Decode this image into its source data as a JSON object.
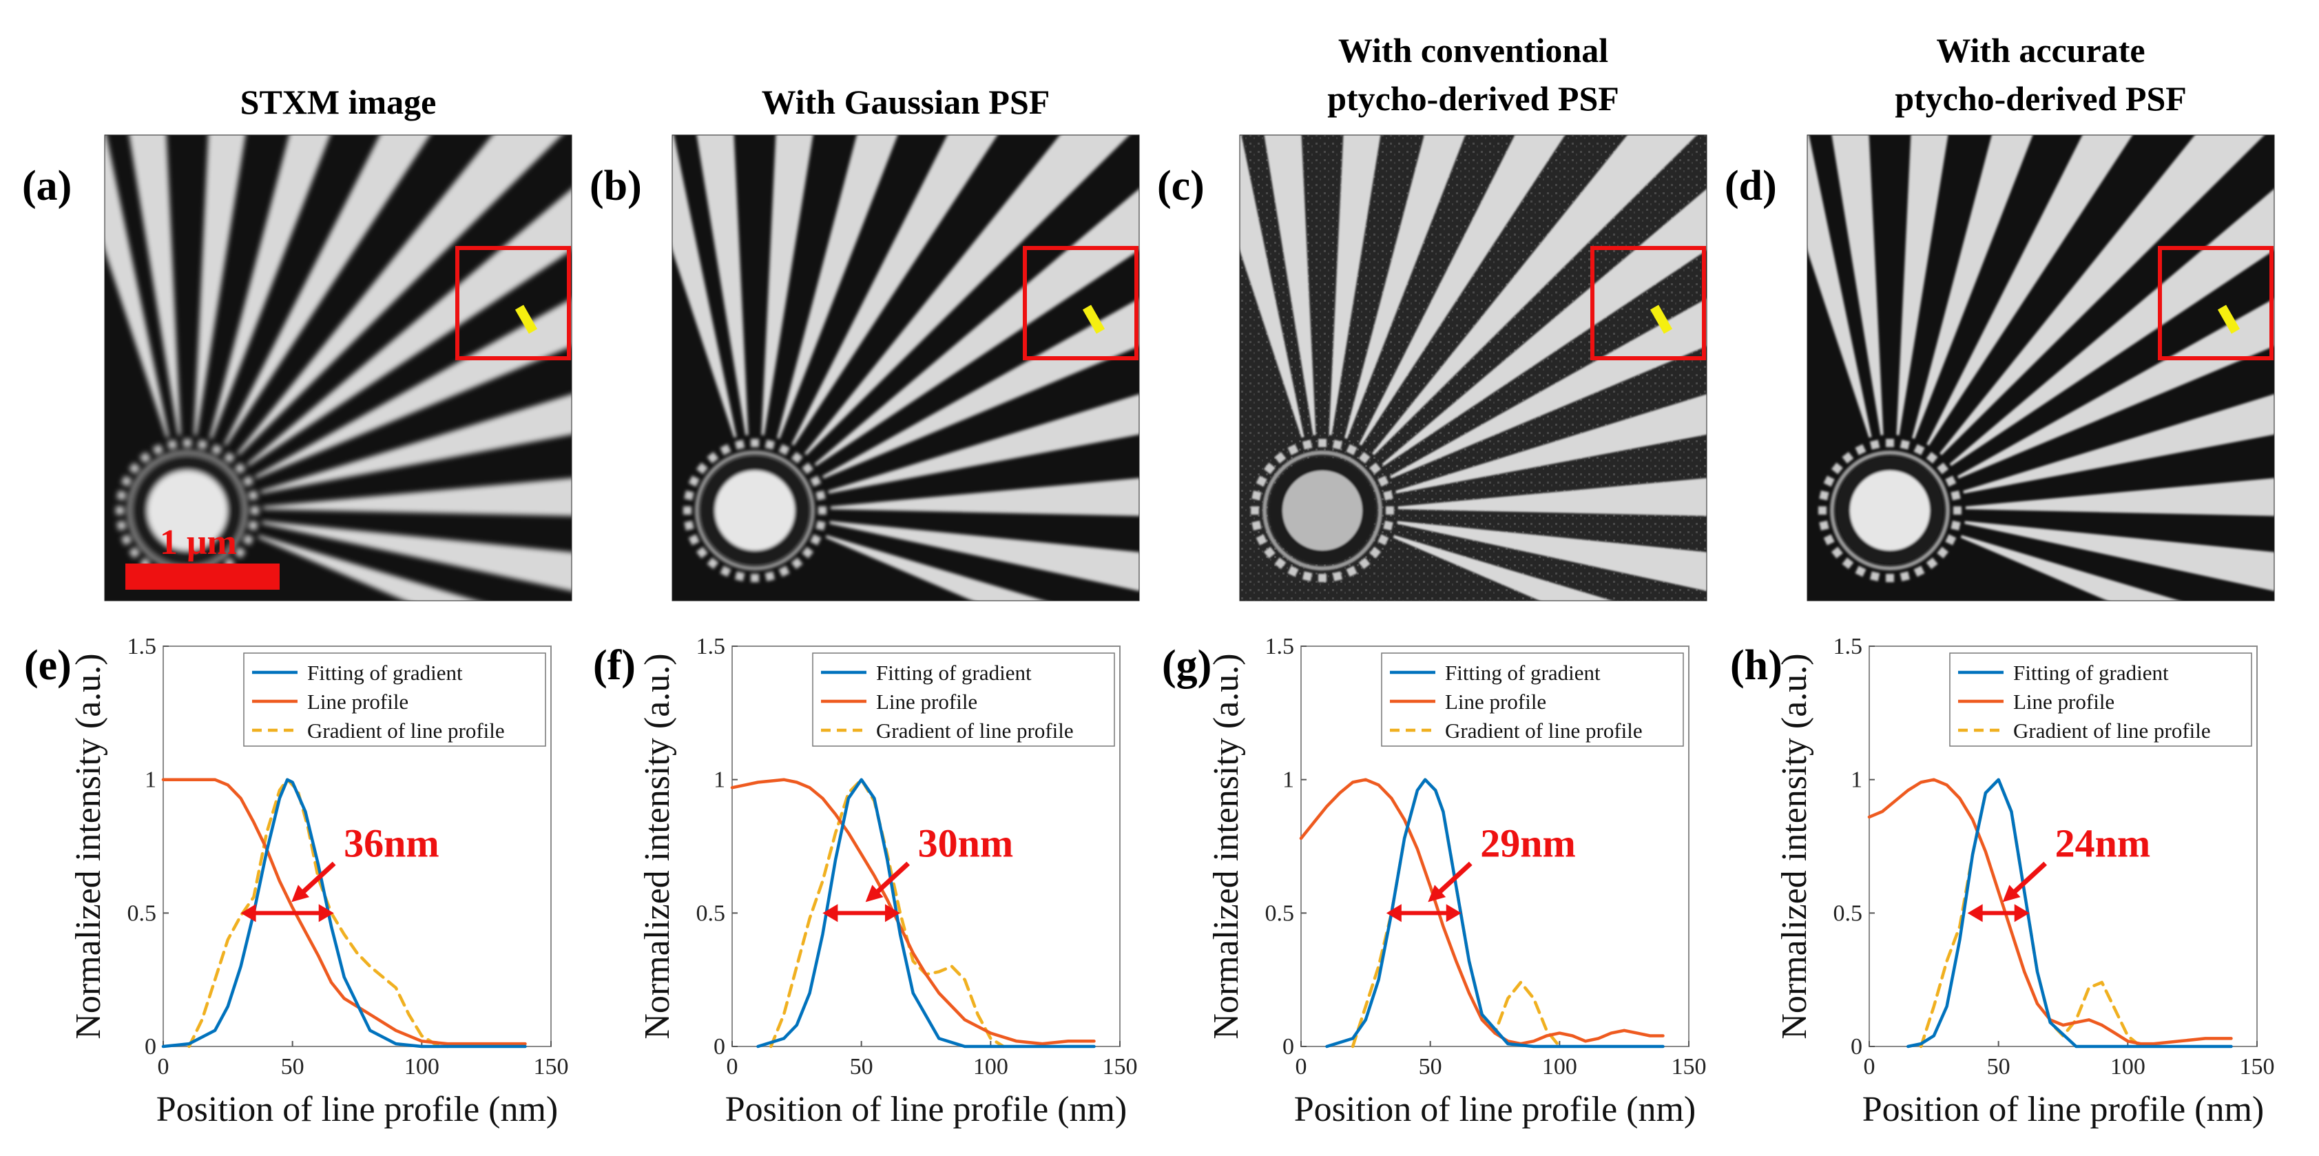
{
  "figure": {
    "image_panels": [
      {
        "label": "(a)",
        "title_lines": [
          "STXM image"
        ],
        "scale_bar_label": "1 μm",
        "blur": 3.6,
        "speckle": false
      },
      {
        "label": "(b)",
        "title_lines": [
          "With Gaussian PSF"
        ],
        "scale_bar_label": "",
        "blur": 2.4,
        "speckle": false
      },
      {
        "label": "(c)",
        "title_lines": [
          "With conventional",
          "ptycho-derived PSF"
        ],
        "scale_bar_label": "",
        "blur": 1.4,
        "speckle": true
      },
      {
        "label": "(d)",
        "title_lines": [
          "With accurate",
          "ptycho-derived PSF"
        ],
        "scale_bar_label": "",
        "blur": 1.6,
        "speckle": false
      }
    ],
    "colors": {
      "fit": "#0072BD",
      "line_profile": "#EE5A1F",
      "gradient": "#F0B020",
      "annotation": "#EE1111",
      "marker": "#F5EF10"
    }
  },
  "chart_data": [
    {
      "type": "line",
      "panel_label": "(e)",
      "xlabel": "Position of line profile (nm)",
      "ylabel": "Normalized intensity (a.u.)",
      "xlim": [
        0,
        150
      ],
      "ylim": [
        0,
        1.5
      ],
      "xticks": [
        0,
        50,
        100,
        150
      ],
      "yticks": [
        0,
        0.5,
        1,
        1.5
      ],
      "ytick_labels": [
        "0",
        "0.5",
        "1",
        "1.5"
      ],
      "legend": [
        "Fitting of gradient",
        "Line profile",
        "Gradient of line profile"
      ],
      "annotation": {
        "text": "36nm",
        "fwhm_range": [
          30,
          66
        ],
        "y": 0.5
      },
      "series": [
        {
          "name": "Fitting of gradient",
          "x": [
            0,
            10,
            20,
            25,
            30,
            35,
            40,
            45,
            48,
            50,
            55,
            60,
            65,
            70,
            80,
            90,
            100,
            110,
            120,
            130,
            140
          ],
          "y": [
            0,
            0.01,
            0.06,
            0.15,
            0.3,
            0.5,
            0.73,
            0.93,
            1.0,
            0.99,
            0.88,
            0.68,
            0.45,
            0.26,
            0.06,
            0.01,
            0,
            0,
            0,
            0,
            0
          ]
        },
        {
          "name": "Line profile",
          "x": [
            0,
            10,
            20,
            25,
            30,
            35,
            40,
            45,
            50,
            55,
            60,
            65,
            70,
            80,
            90,
            100,
            110,
            120,
            130,
            140
          ],
          "y": [
            1.0,
            1.0,
            1.0,
            0.98,
            0.93,
            0.84,
            0.74,
            0.62,
            0.52,
            0.43,
            0.34,
            0.24,
            0.18,
            0.12,
            0.06,
            0.02,
            0.01,
            0.01,
            0.01,
            0.01
          ]
        },
        {
          "name": "Gradient of line profile",
          "x": [
            10,
            15,
            20,
            25,
            30,
            35,
            40,
            45,
            48,
            52,
            56,
            60,
            65,
            70,
            75,
            80,
            85,
            90,
            95,
            100,
            105,
            110
          ],
          "y": [
            0,
            0.1,
            0.25,
            0.4,
            0.49,
            0.56,
            0.8,
            0.96,
            1.0,
            0.96,
            0.82,
            0.63,
            0.5,
            0.42,
            0.35,
            0.3,
            0.26,
            0.22,
            0.12,
            0.04,
            0.01,
            0
          ]
        }
      ]
    },
    {
      "type": "line",
      "panel_label": "(f)",
      "xlabel": "Position of line profile (nm)",
      "ylabel": "Normalized intensity (a.u.)",
      "xlim": [
        0,
        150
      ],
      "ylim": [
        0,
        1.5
      ],
      "xticks": [
        0,
        50,
        100,
        150
      ],
      "yticks": [
        0,
        0.5,
        1,
        1.5
      ],
      "ytick_labels": [
        "0",
        "0.5",
        "1",
        "1.5"
      ],
      "legend": [
        "Fitting of gradient",
        "Line profile",
        "Gradient of line profile"
      ],
      "annotation": {
        "text": "30nm",
        "fwhm_range": [
          35,
          65
        ],
        "y": 0.5
      },
      "series": [
        {
          "name": "Fitting of gradient",
          "x": [
            10,
            20,
            25,
            30,
            35,
            40,
            45,
            50,
            55,
            60,
            65,
            70,
            80,
            90,
            100,
            110,
            120,
            130,
            140
          ],
          "y": [
            0,
            0.03,
            0.08,
            0.2,
            0.42,
            0.7,
            0.93,
            1.0,
            0.93,
            0.7,
            0.42,
            0.2,
            0.03,
            0,
            0,
            0,
            0,
            0,
            0
          ]
        },
        {
          "name": "Line profile",
          "x": [
            0,
            5,
            10,
            20,
            25,
            30,
            35,
            40,
            45,
            50,
            55,
            60,
            65,
            70,
            75,
            80,
            90,
            100,
            110,
            120,
            130,
            140
          ],
          "y": [
            0.97,
            0.98,
            0.99,
            1.0,
            0.99,
            0.97,
            0.93,
            0.87,
            0.8,
            0.72,
            0.64,
            0.55,
            0.45,
            0.35,
            0.27,
            0.2,
            0.1,
            0.05,
            0.02,
            0.01,
            0.02,
            0.02
          ]
        },
        {
          "name": "Gradient of line profile",
          "x": [
            15,
            20,
            25,
            30,
            35,
            40,
            45,
            50,
            55,
            60,
            65,
            70,
            75,
            80,
            85,
            90,
            95,
            100,
            105
          ],
          "y": [
            0,
            0.12,
            0.3,
            0.48,
            0.62,
            0.8,
            0.95,
            1.0,
            0.92,
            0.72,
            0.5,
            0.32,
            0.27,
            0.28,
            0.3,
            0.25,
            0.12,
            0.03,
            0
          ]
        }
      ]
    },
    {
      "type": "line",
      "panel_label": "(g)",
      "xlabel": "Position of line profile (nm)",
      "ylabel": "Normalized intensity (a.u.)",
      "xlim": [
        0,
        150
      ],
      "ylim": [
        0,
        1.5
      ],
      "xticks": [
        0,
        50,
        100,
        150
      ],
      "yticks": [
        0,
        0.5,
        1,
        1.5
      ],
      "ytick_labels": [
        "0",
        "0.5",
        "1",
        "1.5"
      ],
      "legend": [
        "Fitting of gradient",
        "Line profile",
        "Gradient of line profile"
      ],
      "annotation": {
        "text": "29nm",
        "fwhm_range": [
          33,
          62
        ],
        "y": 0.5
      },
      "series": [
        {
          "name": "Fitting of gradient",
          "x": [
            10,
            20,
            25,
            30,
            35,
            40,
            45,
            48,
            52,
            55,
            60,
            65,
            70,
            80,
            90,
            100,
            110,
            120,
            130,
            140
          ],
          "y": [
            0,
            0.03,
            0.1,
            0.25,
            0.5,
            0.78,
            0.96,
            1.0,
            0.96,
            0.88,
            0.6,
            0.32,
            0.12,
            0.01,
            0,
            0,
            0,
            0,
            0,
            0
          ]
        },
        {
          "name": "Line profile",
          "x": [
            0,
            5,
            10,
            15,
            20,
            25,
            30,
            35,
            40,
            45,
            50,
            55,
            60,
            65,
            70,
            75,
            80,
            85,
            90,
            95,
            100,
            105,
            110,
            115,
            120,
            125,
            130,
            135,
            140
          ],
          "y": [
            0.78,
            0.84,
            0.9,
            0.95,
            0.99,
            1.0,
            0.98,
            0.93,
            0.85,
            0.74,
            0.6,
            0.45,
            0.32,
            0.2,
            0.1,
            0.05,
            0.02,
            0.01,
            0.02,
            0.04,
            0.05,
            0.04,
            0.02,
            0.03,
            0.05,
            0.06,
            0.05,
            0.04,
            0.04
          ]
        },
        {
          "name": "Gradient of line profile",
          "x": [
            20,
            25,
            30,
            35,
            40,
            45,
            48,
            52,
            55,
            60,
            65,
            70,
            75,
            80,
            85,
            90,
            95,
            100
          ],
          "y": [
            0,
            0.15,
            0.3,
            0.5,
            0.78,
            0.96,
            1.0,
            0.96,
            0.88,
            0.6,
            0.32,
            0.12,
            0.05,
            0.18,
            0.24,
            0.18,
            0.06,
            0
          ]
        }
      ]
    },
    {
      "type": "line",
      "panel_label": "(h)",
      "xlabel": "Position of line profile (nm)",
      "ylabel": "Normalized intensity (a.u.)",
      "xlim": [
        0,
        150
      ],
      "ylim": [
        0,
        1.5
      ],
      "xticks": [
        0,
        50,
        100,
        150
      ],
      "yticks": [
        0,
        0.5,
        1,
        1.5
      ],
      "ytick_labels": [
        "0",
        "0.5",
        "1",
        "1.5"
      ],
      "legend": [
        "Fitting of gradient",
        "Line profile",
        "Gradient of line profile"
      ],
      "annotation": {
        "text": "24nm",
        "fwhm_range": [
          38,
          62
        ],
        "y": 0.5
      },
      "series": [
        {
          "name": "Fitting of gradient",
          "x": [
            15,
            20,
            25,
            30,
            35,
            40,
            45,
            50,
            55,
            60,
            65,
            70,
            80,
            90,
            100,
            110,
            120,
            130,
            140
          ],
          "y": [
            0,
            0.01,
            0.04,
            0.15,
            0.4,
            0.72,
            0.95,
            1.0,
            0.88,
            0.58,
            0.28,
            0.09,
            0,
            0,
            0,
            0,
            0,
            0,
            0
          ]
        },
        {
          "name": "Line profile",
          "x": [
            0,
            5,
            10,
            15,
            20,
            25,
            30,
            35,
            40,
            45,
            50,
            55,
            60,
            65,
            70,
            75,
            80,
            85,
            90,
            95,
            100,
            105,
            110,
            120,
            130,
            140
          ],
          "y": [
            0.86,
            0.88,
            0.92,
            0.96,
            0.99,
            1.0,
            0.98,
            0.93,
            0.85,
            0.73,
            0.58,
            0.43,
            0.28,
            0.16,
            0.1,
            0.08,
            0.09,
            0.1,
            0.08,
            0.05,
            0.02,
            0.01,
            0.01,
            0.02,
            0.03,
            0.03
          ]
        },
        {
          "name": "Gradient of line profile",
          "x": [
            20,
            25,
            30,
            35,
            40,
            45,
            50,
            55,
            60,
            65,
            70,
            75,
            80,
            85,
            90,
            95,
            100,
            105
          ],
          "y": [
            0,
            0.15,
            0.32,
            0.45,
            0.72,
            0.95,
            1.0,
            0.88,
            0.58,
            0.28,
            0.09,
            0.04,
            0.1,
            0.22,
            0.24,
            0.14,
            0.04,
            0
          ]
        }
      ]
    }
  ]
}
